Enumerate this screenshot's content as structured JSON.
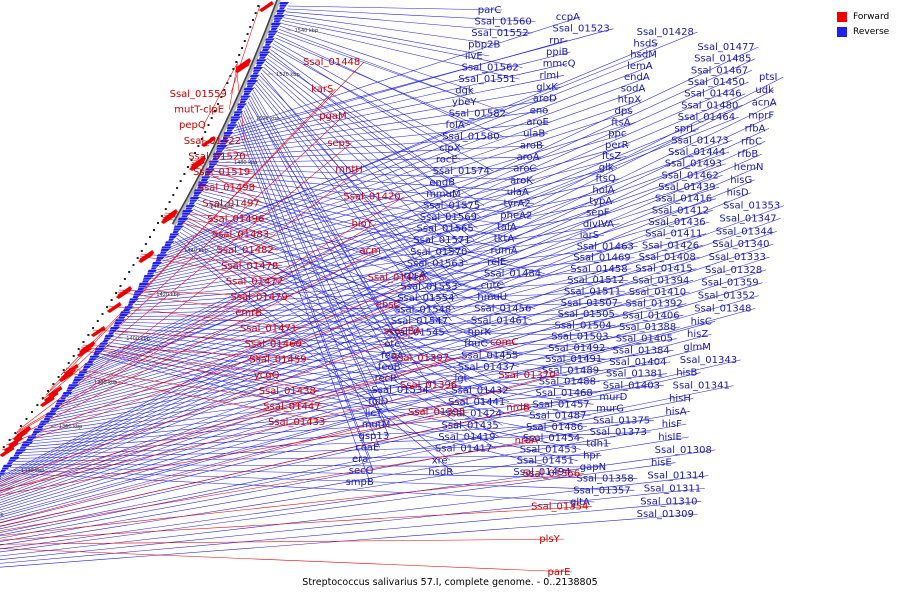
{
  "caption": "Streptococcus salivarius 57.I, complete genome. - 0..2138805",
  "legend": [
    {
      "label": "Forward",
      "color": "#ee0000"
    },
    {
      "label": "Reverse",
      "color": "#1f1fee"
    }
  ],
  "ticks": [
    "1540 kbp",
    "1520 kbp",
    "1500 kbp",
    "1480 kbp",
    "1460 kbp",
    "1440 kbp",
    "1420 kbp",
    "1400 kbp",
    "1380 kbp",
    "1360 kbp",
    "1340 kbp",
    "1320 kbp",
    "1300 kbp"
  ],
  "labels_forward": [
    "Ssal_01559",
    "mutT-clpE",
    "pepQ",
    "Ssal_01522",
    "Ssal_01520",
    "Ssal_01519",
    "Ssal_01498",
    "Ssal_01497",
    "Ssal_01496",
    "Ssal_01483",
    "Ssal_01482",
    "Ssal_01478",
    "Ssal_01472",
    "Ssal_01479",
    "emrB",
    "Ssal_01471",
    "Ssal_01460",
    "Ssal_01459",
    "ycgQ",
    "Ssal_01438",
    "Ssal_01447",
    "Ssal_01433",
    "Ssal_01448",
    "karS",
    "pgaM",
    "seps",
    "mntH",
    "Ssal_01420",
    "bioY",
    "acm",
    "Ssal_01418",
    "ebsC",
    "scaCBA",
    "Ssal_01397",
    "Ssal_01396",
    "Ssal_01395",
    "comC",
    "Ssal_01370",
    "nrdB",
    "nrdA",
    "Ssal_01356",
    "Ssal_01354",
    "plsY",
    "parE"
  ],
  "labels_reverse": [
    "parC",
    "Ssal_01560",
    "Ssal_01552",
    "pbp2B",
    "ilvE",
    "Ssal_01562",
    "Ssal_01551",
    "dgk",
    "ybeY",
    "Ssal_01582",
    "folA",
    "Ssal_01580",
    "clpX",
    "rocE",
    "Ssal_01574",
    "engB",
    "mmuM",
    "Ssal_01575",
    "Ssal_01569",
    "Ssal_01565",
    "Ssal_01571",
    "Ssal_01570",
    "Ssal_01563",
    "rpsA",
    "Ssal_01553",
    "Ssal_01554",
    "Ssal_01548",
    "Ssal_01547",
    "Ssal_01545",
    "otc",
    "feoA",
    "feoB",
    "recR",
    "Ssal_01534",
    "folD",
    "licT",
    "mutM",
    "gsp13",
    "coaE",
    "era",
    "secG",
    "smpB",
    "ccpA",
    "Ssal_01523",
    "rnr",
    "ppiB",
    "mmcQ",
    "rlmI",
    "glxK",
    "aroD",
    "eno",
    "aroE",
    "ulaB",
    "aroB",
    "aroA",
    "aroC",
    "aroK",
    "ulaA",
    "tyrA2",
    "pheA2",
    "talA",
    "tktA",
    "rumA",
    "relE",
    "Ssal_01484",
    "cutC",
    "hmuU",
    "Ssal_01456",
    "Ssal_01461",
    "hprK",
    "fhuC",
    "Ssal_01455",
    "Ssal_01437",
    "lgt",
    "Ssal_01432",
    "Ssal_01441",
    "Ssal_01424",
    "Ssal_01435",
    "Ssal_01419",
    "Ssal_01417",
    "xre",
    "hsdR",
    "Ssal_01428",
    "hsdS",
    "hsdM",
    "lemA",
    "endA",
    "sodA",
    "htpX",
    "dps",
    "ftsA",
    "ppc",
    "perR",
    "ftsZ",
    "glk",
    "ftsQ",
    "holA",
    "typA",
    "sepF",
    "divIVA",
    "iarS",
    "Ssal_01463",
    "Ssal_01469",
    "Ssal_01458",
    "Ssal_01512",
    "Ssal_01511",
    "Ssal_01507",
    "Ssal_01505",
    "Ssal_01504",
    "Ssal_01503",
    "Ssal_01492",
    "Ssal_01491",
    "Ssal_01489",
    "Ssal_01488",
    "Ssal_01468",
    "Ssal_01457",
    "Ssal_01487",
    "Ssal_01486",
    "Ssal_01454",
    "Ssal_01453",
    "Ssal_01451",
    "Ssal_01494",
    "Ssal_01477",
    "Ssal_01485",
    "Ssal_01467",
    "Ssal_01450",
    "Ssal_01446",
    "Ssal_01480",
    "Ssal_01464",
    "sprL",
    "Ssal_01473",
    "Ssal_01444",
    "Ssal_01493",
    "Ssal_01462",
    "Ssal_01439",
    "Ssal_01416",
    "Ssal_01412",
    "Ssal_01436",
    "Ssal_01411",
    "Ssal_01426",
    "Ssal_01408",
    "Ssal_01415",
    "Ssal_01394",
    "Ssal_01410",
    "Ssal_01392",
    "Ssal_01406",
    "Ssal_01388",
    "Ssal_01405",
    "Ssal_01384",
    "Ssal_01404",
    "Ssal_01381",
    "Ssal_01403",
    "murD",
    "murG",
    "Ssal_01375",
    "Ssal_01373",
    "tdh1",
    "hpr",
    "gapN",
    "Ssal_01358",
    "Ssal_01357",
    "gltA",
    "ptsI",
    "udk",
    "acnA",
    "mprF",
    "rfbA",
    "rfbC",
    "rfbB",
    "hemN",
    "hisG",
    "hisD",
    "Ssal_01353",
    "Ssal_01347",
    "Ssal_01344",
    "Ssal_01340",
    "Ssal_01333",
    "Ssal_01328",
    "Ssal_01359",
    "Ssal_01352",
    "Ssal_01348",
    "hisC",
    "hisZ",
    "glmM",
    "Ssal_01343",
    "hisB",
    "Ssal_01341",
    "hisH",
    "hisA",
    "hisF",
    "hisIE",
    "Ssal_01308",
    "hisE",
    "Ssal_01314",
    "Ssal_01311",
    "Ssal_01310",
    "Ssal_01309"
  ]
}
